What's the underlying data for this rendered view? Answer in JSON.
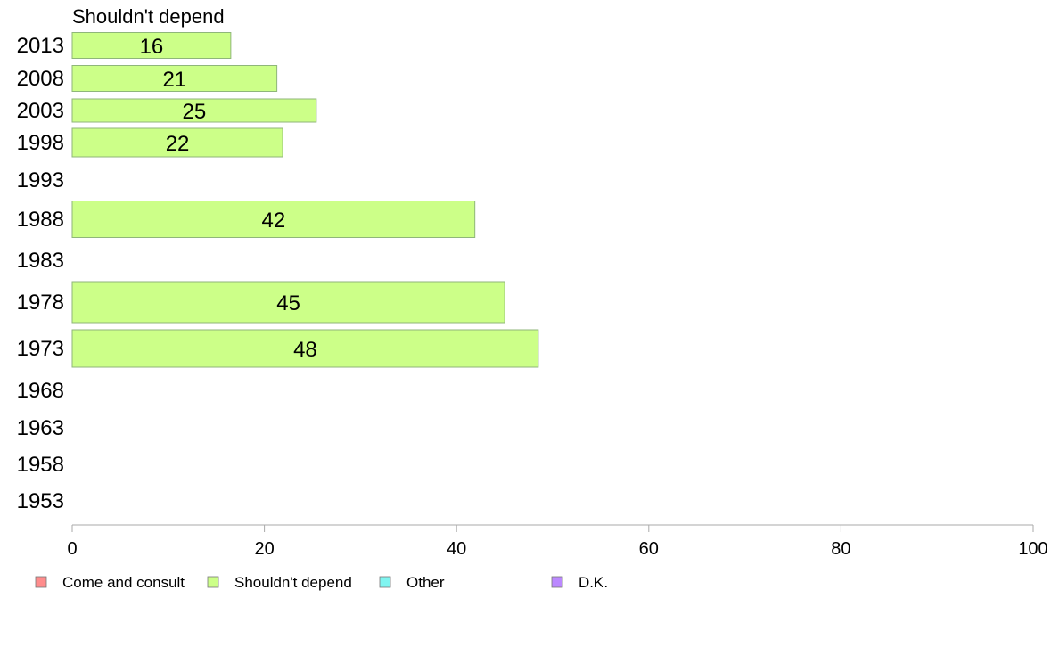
{
  "chart_data": {
    "type": "bar",
    "orientation": "horizontal",
    "title": "Shouldn't depend",
    "xlim": [
      0,
      100
    ],
    "xticks": [
      0,
      20,
      40,
      60,
      80,
      100
    ],
    "grid": false,
    "legend_position": "bottom",
    "categories": [
      "2013",
      "2008",
      "2003",
      "1998",
      "1993",
      "1988",
      "1983",
      "1978",
      "1973",
      "1968",
      "1963",
      "1958",
      "1953"
    ],
    "series": [
      {
        "name": "Shouldn't depend",
        "color": "#ccff88",
        "values": [
          16.5,
          21.3,
          25.4,
          21.9,
          null,
          41.9,
          null,
          45.0,
          48.5,
          null,
          null,
          null,
          null
        ],
        "labels": [
          "16",
          "21",
          "25",
          "22",
          null,
          "42",
          null,
          "45",
          "48",
          null,
          null,
          null,
          null
        ]
      }
    ],
    "legend": [
      {
        "name": "Come and consult",
        "color": "#ff8c8c"
      },
      {
        "name": "Shouldn't depend",
        "color": "#ccff88"
      },
      {
        "name": "Other",
        "color": "#7ff5f0"
      },
      {
        "name": "D.K.",
        "color": "#bb88ff"
      }
    ]
  }
}
